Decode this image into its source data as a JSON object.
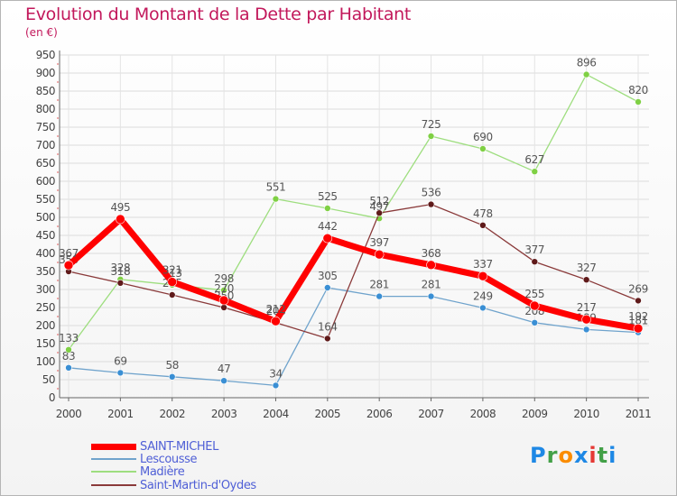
{
  "header": {
    "title": "Evolution du Montant de la Dette par Habitant",
    "unit": "(en €)"
  },
  "logo": {
    "text": "Proxiti",
    "colors": [
      "#1e88e5",
      "#43a047",
      "#fb8c00",
      "#1e88e5",
      "#e53935",
      "#43a047",
      "#1e88e5"
    ]
  },
  "chart_data": {
    "type": "line",
    "title": "Evolution du Montant de la Dette par Habitant",
    "subtitle": "(en €)",
    "x": [
      "2000",
      "2001",
      "2002",
      "2003",
      "2004",
      "2005",
      "2006",
      "2007",
      "2008",
      "2009",
      "2010",
      "2011"
    ],
    "ylim": [
      0,
      950
    ],
    "yticks": [
      0,
      50,
      100,
      150,
      200,
      250,
      300,
      350,
      400,
      450,
      500,
      550,
      600,
      650,
      700,
      750,
      800,
      850,
      900,
      950
    ],
    "grid": true,
    "legend": "bottom-left",
    "series": [
      {
        "name": "Lescousse",
        "color": "#6fa3cc",
        "marker": "#3a8fd4",
        "width": 1.3,
        "values": [
          83,
          69,
          58,
          47,
          34,
          305,
          281,
          281,
          249,
          208,
          189,
          181
        ]
      },
      {
        "name": "Madière",
        "color": "#9ede7f",
        "marker": "#7fd044",
        "width": 1.3,
        "values": [
          133,
          328,
          313,
          298,
          551,
          525,
          497,
          725,
          690,
          627,
          896,
          820
        ]
      },
      {
        "name": "Saint-Martin-d'Oydes",
        "color": "#8a3a3a",
        "marker": "#5f1a1a",
        "width": 1.3,
        "values": [
          350,
          318,
          285,
          250,
          208,
          164,
          512,
          536,
          478,
          377,
          327,
          269
        ]
      },
      {
        "name": "SAINT-MICHEL",
        "color": "#ff0000",
        "marker": "#ff0000",
        "width": 7,
        "values": [
          367,
          495,
          321,
          270,
          212,
          442,
          397,
          368,
          337,
          255,
          217,
          192
        ]
      }
    ],
    "legend_order": [
      "SAINT-MICHEL",
      "Lescousse",
      "Madière",
      "Saint-Martin-d'Oydes"
    ]
  }
}
